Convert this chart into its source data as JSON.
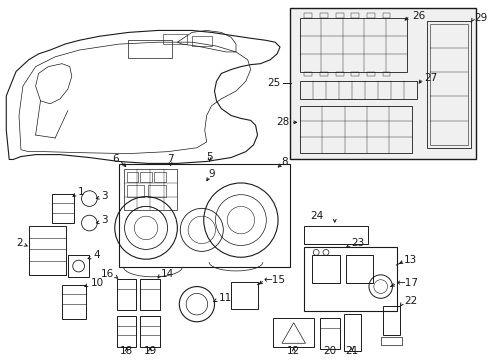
{
  "bg_color": "#ffffff",
  "line_color": "#1a1a1a",
  "text_color": "#1a1a1a",
  "fig_w": 4.89,
  "fig_h": 3.6,
  "dpi": 100
}
